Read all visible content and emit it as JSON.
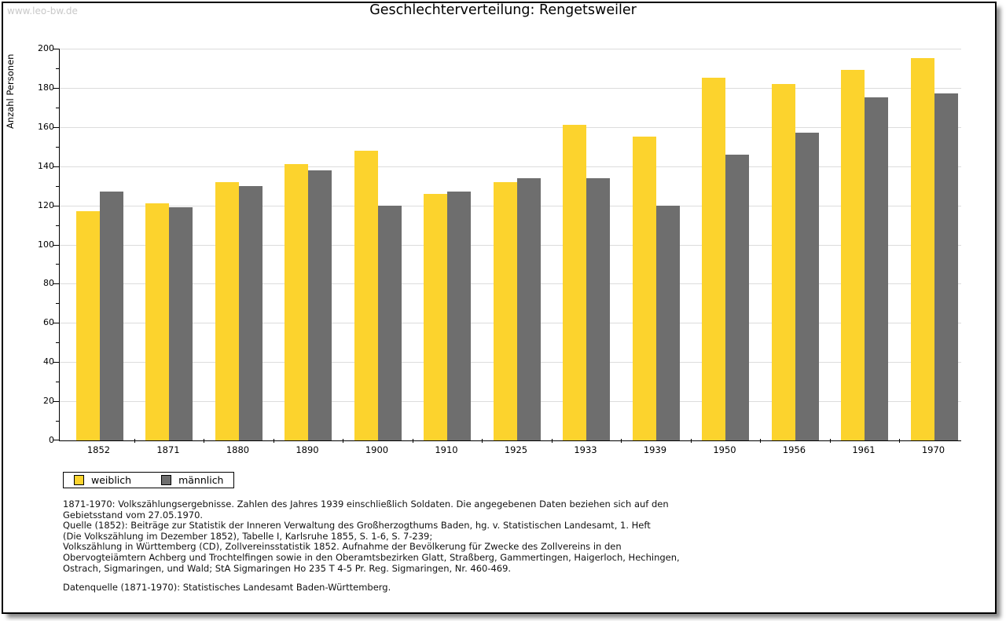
{
  "page": {
    "watermark": "www.leo-bw.de"
  },
  "chart_data": {
    "type": "bar",
    "title": "Geschlechterverteilung: Rengetsweiler",
    "xlabel": "",
    "ylabel": "Anzahl Personen",
    "ylim": [
      0,
      200
    ],
    "ytick_step": 20,
    "yminor_step": 10,
    "grid": true,
    "legend_position": "below-left",
    "categories": [
      "1852",
      "1871",
      "1880",
      "1890",
      "1900",
      "1910",
      "1925",
      "1933",
      "1939",
      "1950",
      "1956",
      "1961",
      "1970"
    ],
    "series": [
      {
        "name": "weiblich",
        "color": "#fcd32d",
        "values": [
          117,
          121,
          132,
          141,
          148,
          126,
          132,
          161,
          155,
          185,
          182,
          189,
          195
        ]
      },
      {
        "name": "männlich",
        "color": "#6e6e6e",
        "values": [
          127,
          119,
          130,
          138,
          120,
          127,
          134,
          134,
          120,
          146,
          157,
          175,
          177
        ]
      }
    ]
  },
  "legend": {
    "items": [
      {
        "label": "weiblich",
        "color": "#fcd32d"
      },
      {
        "label": "männlich",
        "color": "#6e6e6e"
      }
    ]
  },
  "footnotes": {
    "lines": [
      "1871-1970: Volkszählungsergebnisse. Zahlen des Jahres 1939 einschließlich Soldaten. Die angegebenen Daten beziehen sich auf den",
      "Gebietsstand vom 27.05.1970.",
      "Quelle (1852): Beiträge zur Statistik der Inneren Verwaltung des Großherzogthums Baden, hg. v. Statistischen Landesamt, 1. Heft",
      "(Die Volkszählung im Dezember 1852), Tabelle I, Karlsruhe 1855, S. 1-6, S. 7-239;",
      "Volkszählung in Württemberg (CD), Zollvereinsstatistik 1852. Aufnahme der Bevölkerung für Zwecke des Zollvereins in den",
      "Obervogteiämtern Achberg und Trochtelfingen sowie in den Oberamtsbezirken Glatt, Straßberg, Gammertingen, Haigerloch, Hechingen,",
      "Ostrach, Sigmaringen, und Wald; StA Sigmaringen Ho 235 T 4-5 Pr. Reg. Sigmaringen, Nr. 460-469."
    ],
    "source": "Datenquelle (1871-1970): Statistisches Landesamt Baden-Württemberg."
  },
  "colors": {
    "female_bar": "#fcd32d",
    "male_bar": "#6e6e6e",
    "gridline": "#dcdcdc",
    "watermark": "#c9c9c9",
    "axis": "#000000",
    "frame_border": "#000000"
  }
}
